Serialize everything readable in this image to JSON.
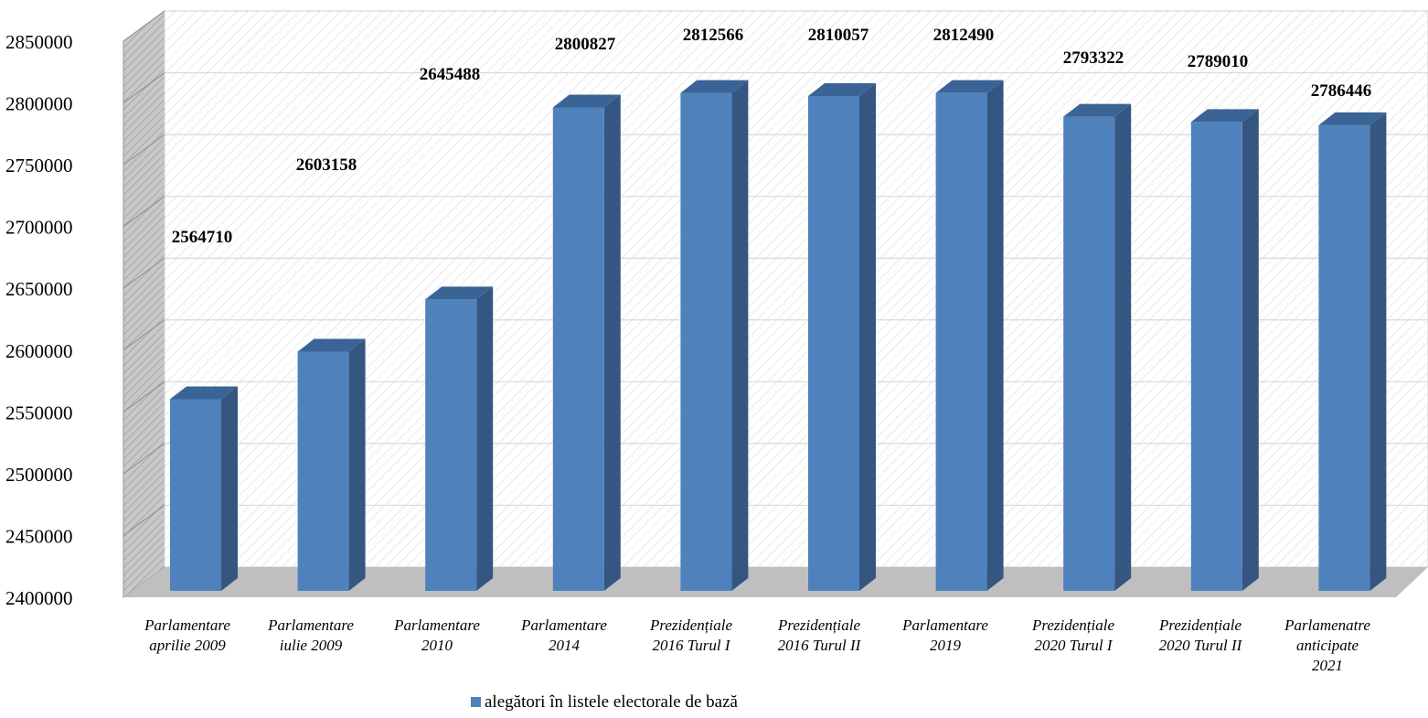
{
  "chart_data": {
    "type": "bar",
    "categories": [
      [
        "Parlamentare",
        "aprilie 2009"
      ],
      [
        "Parlamentare",
        "iulie 2009"
      ],
      [
        "Parlamentare",
        "2010"
      ],
      [
        "Parlamentare",
        "2014"
      ],
      [
        "Prezidențiale",
        "2016 Turul I"
      ],
      [
        "Prezidențiale",
        "2016 Turul II"
      ],
      [
        "Parlamentare",
        "2019"
      ],
      [
        "Prezidențiale",
        "2020 Turul I"
      ],
      [
        "Prezidențiale",
        "2020 Turul II"
      ],
      [
        "Parlamenatre",
        "anticipate",
        "2021"
      ]
    ],
    "series": [
      {
        "name": "alegători în listele electorale de bază",
        "values": [
          2564710,
          2603158,
          2645488,
          2800827,
          2812566,
          2810057,
          2812490,
          2793322,
          2789010,
          2786446
        ]
      }
    ],
    "data_labels": [
      "2564710",
      "2603158",
      "2645488",
      "2800827",
      "2812566",
      "2810057",
      "2812490",
      "2793322",
      "2789010",
      "2786446"
    ],
    "ylim": [
      2400000,
      2850000
    ],
    "yticks": [
      "2400000",
      "2450000",
      "2500000",
      "2550000",
      "2600000",
      "2650000",
      "2700000",
      "2750000",
      "2800000",
      "2850000"
    ],
    "title": "",
    "xlabel": "",
    "ylabel": "",
    "legend_position": "bottom",
    "grid": true,
    "three_d": true,
    "colors": {
      "bar_front": "#4f81bd",
      "bar_side": "#355681",
      "bar_top": "#3a6496",
      "floor": "#bfbfbf",
      "wall": "#ffffff",
      "gridline": "#d9d9d9"
    }
  }
}
